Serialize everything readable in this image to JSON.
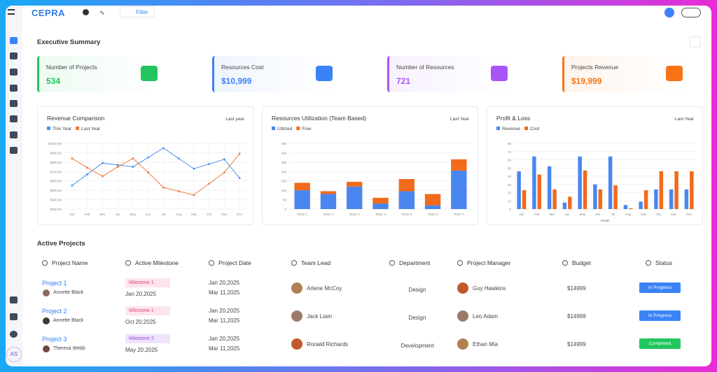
{
  "app": {
    "brand": "CEPRA",
    "filter": "Filter",
    "avatar": "AS"
  },
  "summary": {
    "title": "Executive Summary",
    "kpis": [
      {
        "label": "Number of Projects",
        "value": "534",
        "color": "#22c55e"
      },
      {
        "label": "Resources Cost",
        "value": "$10,999",
        "color": "#3b82f6"
      },
      {
        "label": "Number of Resources",
        "value": "721",
        "color": "#a855f7"
      },
      {
        "label": "Projects Revenue",
        "value": "$19,999",
        "color": "#f97316"
      }
    ]
  },
  "chart_data": [
    {
      "type": "line",
      "title": "Revenue Comparison",
      "period": "Last year",
      "categories": [
        "Jan",
        "Feb",
        "Mar",
        "Apr",
        "May",
        "Jun",
        "Jul",
        "Aug",
        "Sep",
        "Oct",
        "Nov",
        "Dec"
      ],
      "series": [
        {
          "name": "This Year",
          "color": "#4a90f0",
          "values": [
            550,
            670,
            790,
            770,
            750,
            850,
            950,
            840,
            730,
            780,
            830,
            630
          ]
        },
        {
          "name": "Last Year",
          "color": "#f07a3a",
          "values": [
            840,
            740,
            650,
            750,
            840,
            690,
            530,
            490,
            450,
            570,
            690,
            890
          ]
        }
      ],
      "ylim": [
        300,
        1000
      ],
      "yticks": [
        {
          "value": 1000,
          "label": "$1000.00"
        },
        {
          "value": 900,
          "label": "$900.00"
        },
        {
          "value": 800,
          "label": "$800.00"
        },
        {
          "value": 700,
          "label": "$700.00"
        },
        {
          "value": 600,
          "label": "$600.00"
        },
        {
          "value": 500,
          "label": "$500.00"
        },
        {
          "value": 400,
          "label": "$400.00"
        },
        {
          "value": 300,
          "label": "$300.00"
        }
      ],
      "grid": true
    },
    {
      "type": "bar",
      "stacked": true,
      "title": "Resources Utilization (Team Based)",
      "period": "Last Year",
      "categories": [
        "Team 1",
        "Team 2",
        "Team 3",
        "Team 4",
        "Team 5",
        "Team 6",
        "Team 7"
      ],
      "series": [
        {
          "name": "Utilized",
          "color": "#4a86f0",
          "values": [
            100,
            80,
            120,
            30,
            95,
            20,
            205
          ]
        },
        {
          "name": "Free",
          "color": "#f26a1b",
          "values": [
            40,
            15,
            25,
            30,
            65,
            60,
            60
          ]
        }
      ],
      "ylim": [
        0,
        350
      ],
      "yticks": [
        0,
        50,
        100,
        150,
        200,
        250,
        300,
        350
      ],
      "grid": true
    },
    {
      "type": "bar",
      "stacked": false,
      "title": "Profit & Loss",
      "period": "Last Year",
      "x_label": "Month",
      "categories": [
        "Jan",
        "Feb",
        "Mar",
        "Apr",
        "May",
        "Jun",
        "Jul",
        "Aug",
        "Sep",
        "Oct",
        "Nov",
        "Dec"
      ],
      "series": [
        {
          "name": "Revenue",
          "color": "#4a86f0",
          "values": [
            46,
            64,
            52,
            8,
            64,
            30,
            64,
            5,
            9,
            24,
            24,
            24
          ]
        },
        {
          "name": "Cost",
          "color": "#f26a1b",
          "values": [
            23,
            42,
            24,
            15,
            47,
            24,
            29,
            1,
            23,
            46,
            46,
            46
          ]
        }
      ],
      "ylim": [
        0,
        80
      ],
      "yticks": [
        0,
        10,
        20,
        30,
        40,
        50,
        60,
        70,
        80
      ],
      "grid": true
    }
  ],
  "projects": {
    "title": "Active Projects",
    "headers": [
      "Project Name",
      "Active Milestone",
      "Project Date",
      "Team Lead",
      "Department",
      "Project Manager",
      "Budget",
      "Status"
    ],
    "rows": [
      {
        "name": "Project 1",
        "owner": "Annette Black",
        "milestone": "Milestone 1",
        "milestone_date": "Jan 20,2025",
        "start": "Jan 20,2025",
        "end": "Mar 11,2025",
        "lead": "Arlene McCoy",
        "department": "Design",
        "manager": "Guy Hawkins",
        "budget": "$14999",
        "status": "In Progress",
        "status_color": "#3b82f6",
        "milestone_color": "#e0457b",
        "milestone_bg": "#fde4ee"
      },
      {
        "name": "Project 2",
        "owner": "Annette Black",
        "milestone": "Milestone 1",
        "milestone_date": "Oct 20,2025",
        "start": "Jan 20,2025",
        "end": "Mar 11,2025",
        "lead": "Jack Liam",
        "department": "Design",
        "manager": "Leo Adam",
        "budget": "$14999",
        "status": "In Progress",
        "status_color": "#3b82f6",
        "milestone_color": "#e0457b",
        "milestone_bg": "#fde4ee"
      },
      {
        "name": "Project 3",
        "owner": "Theresa Webb",
        "milestone": "Milestone 2",
        "milestone_date": "May 20,2025",
        "start": "Jan 20,2025",
        "end": "Mar 11,2025",
        "lead": "Ronald Richards",
        "department": "Development",
        "manager": "Ethan Mia",
        "budget": "$14999",
        "status": "Completed",
        "status_color": "#22c55e",
        "milestone_color": "#9b4de0",
        "milestone_bg": "#efe2fb"
      }
    ]
  }
}
